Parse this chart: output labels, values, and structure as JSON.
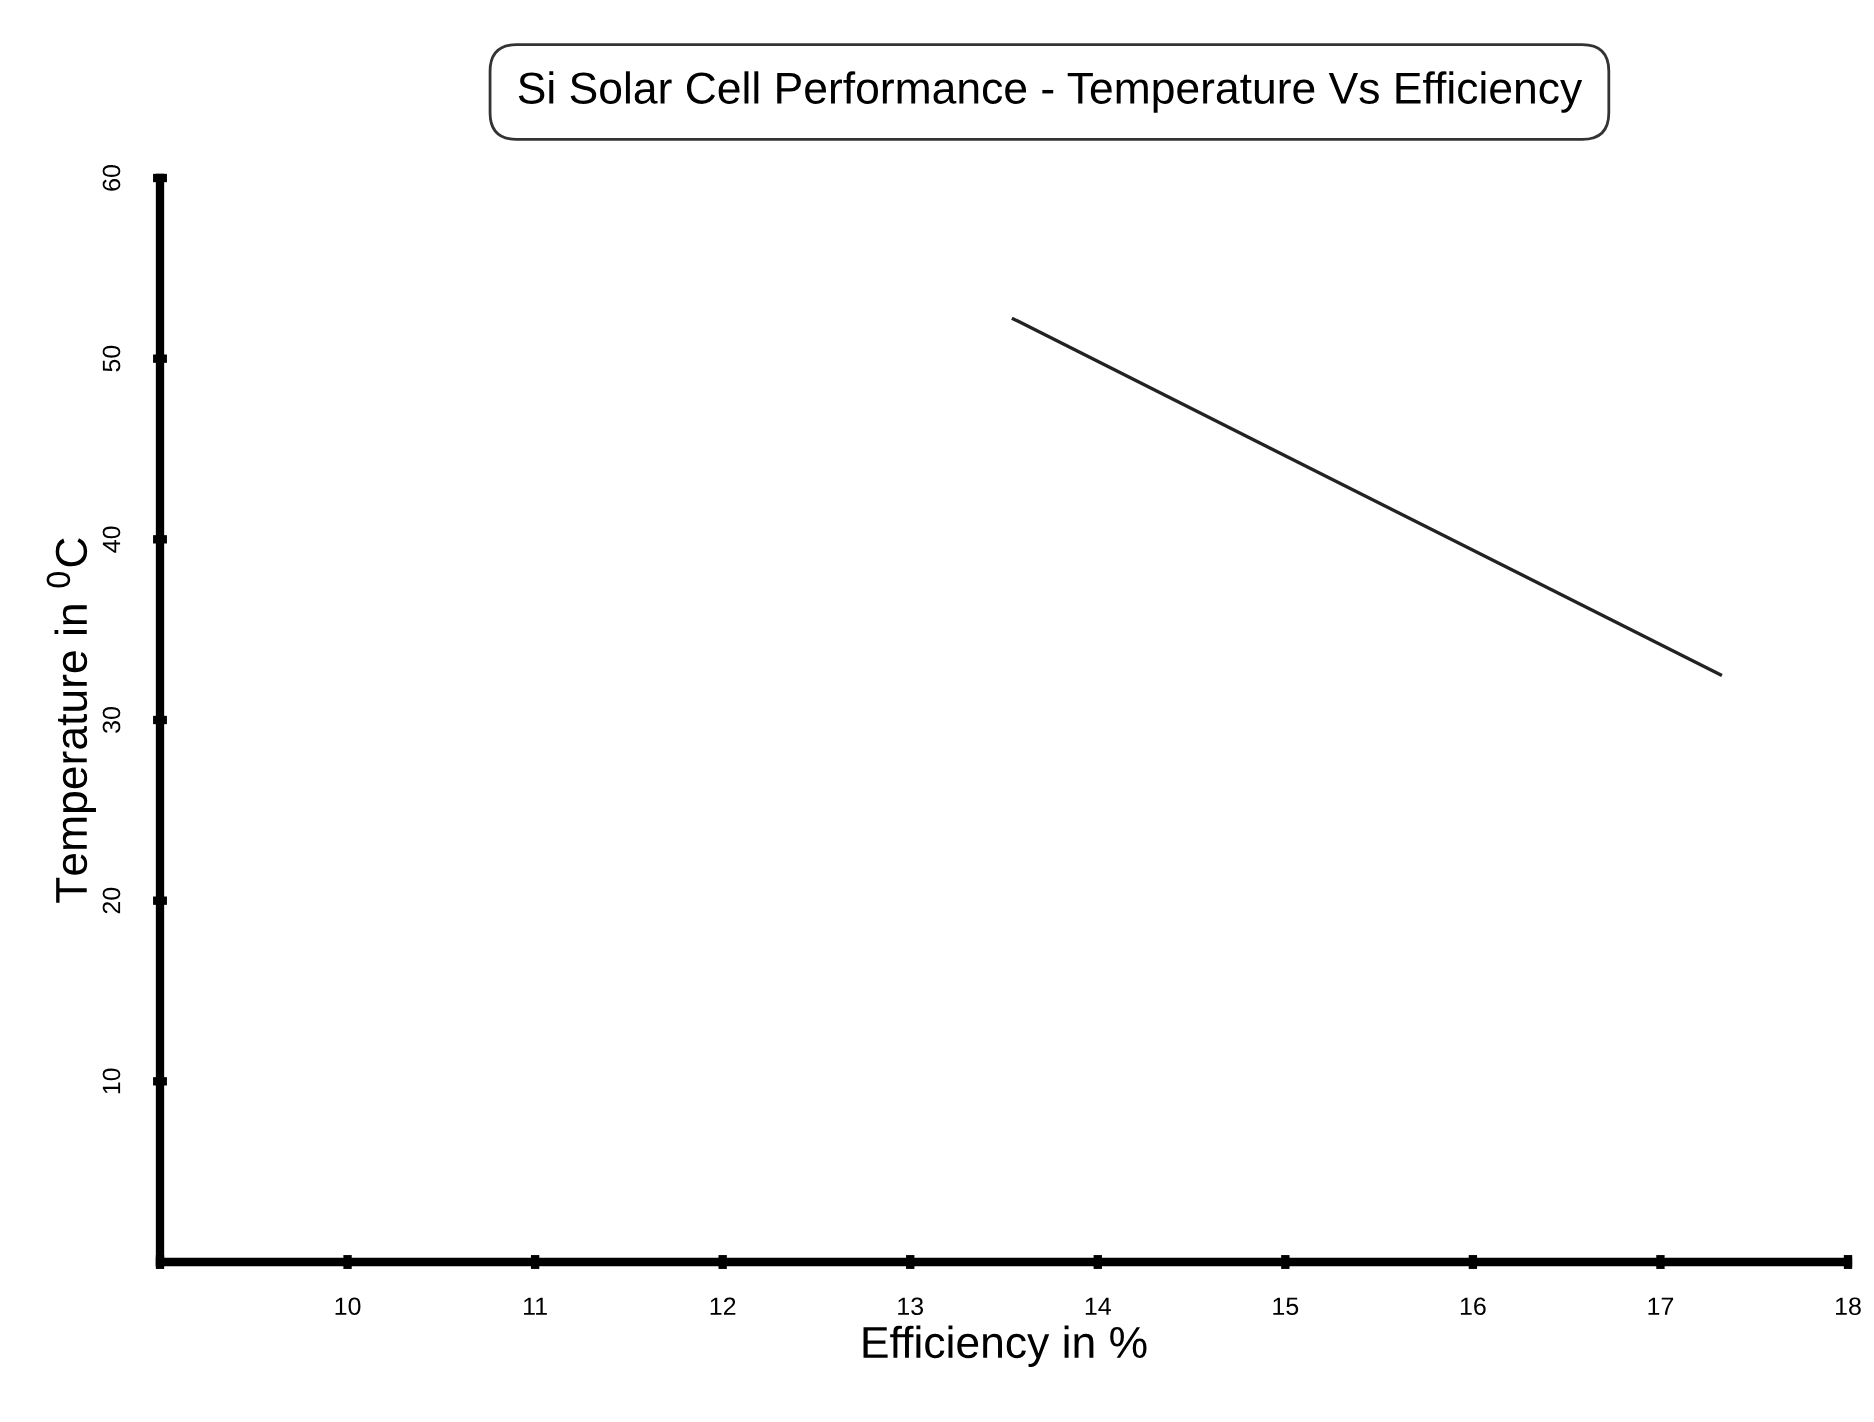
{
  "chart_data": {
    "type": "line",
    "title": "Si Solar Cell Performance - Temperature Vs Efficiency",
    "xlabel": "Efficiency in %",
    "ylabel": "Temperature in $^{0}$C",
    "series": [
      {
        "x": [
          13.55,
          17.32
        ],
        "values": [
          52.2,
          32.5
        ],
        "color": "#222222"
      }
    ],
    "xlim": [
      9,
      18
    ],
    "xticks": [
      {
        "value": 9,
        "label": null
      },
      10,
      11,
      12,
      13,
      14,
      15,
      16,
      17,
      18
    ],
    "ylim": [
      0,
      60
    ],
    "yticks": [
      10,
      20,
      30,
      40,
      50,
      60
    ],
    "grid": false,
    "legend": false,
    "marker": "none",
    "line_style": "solid"
  }
}
